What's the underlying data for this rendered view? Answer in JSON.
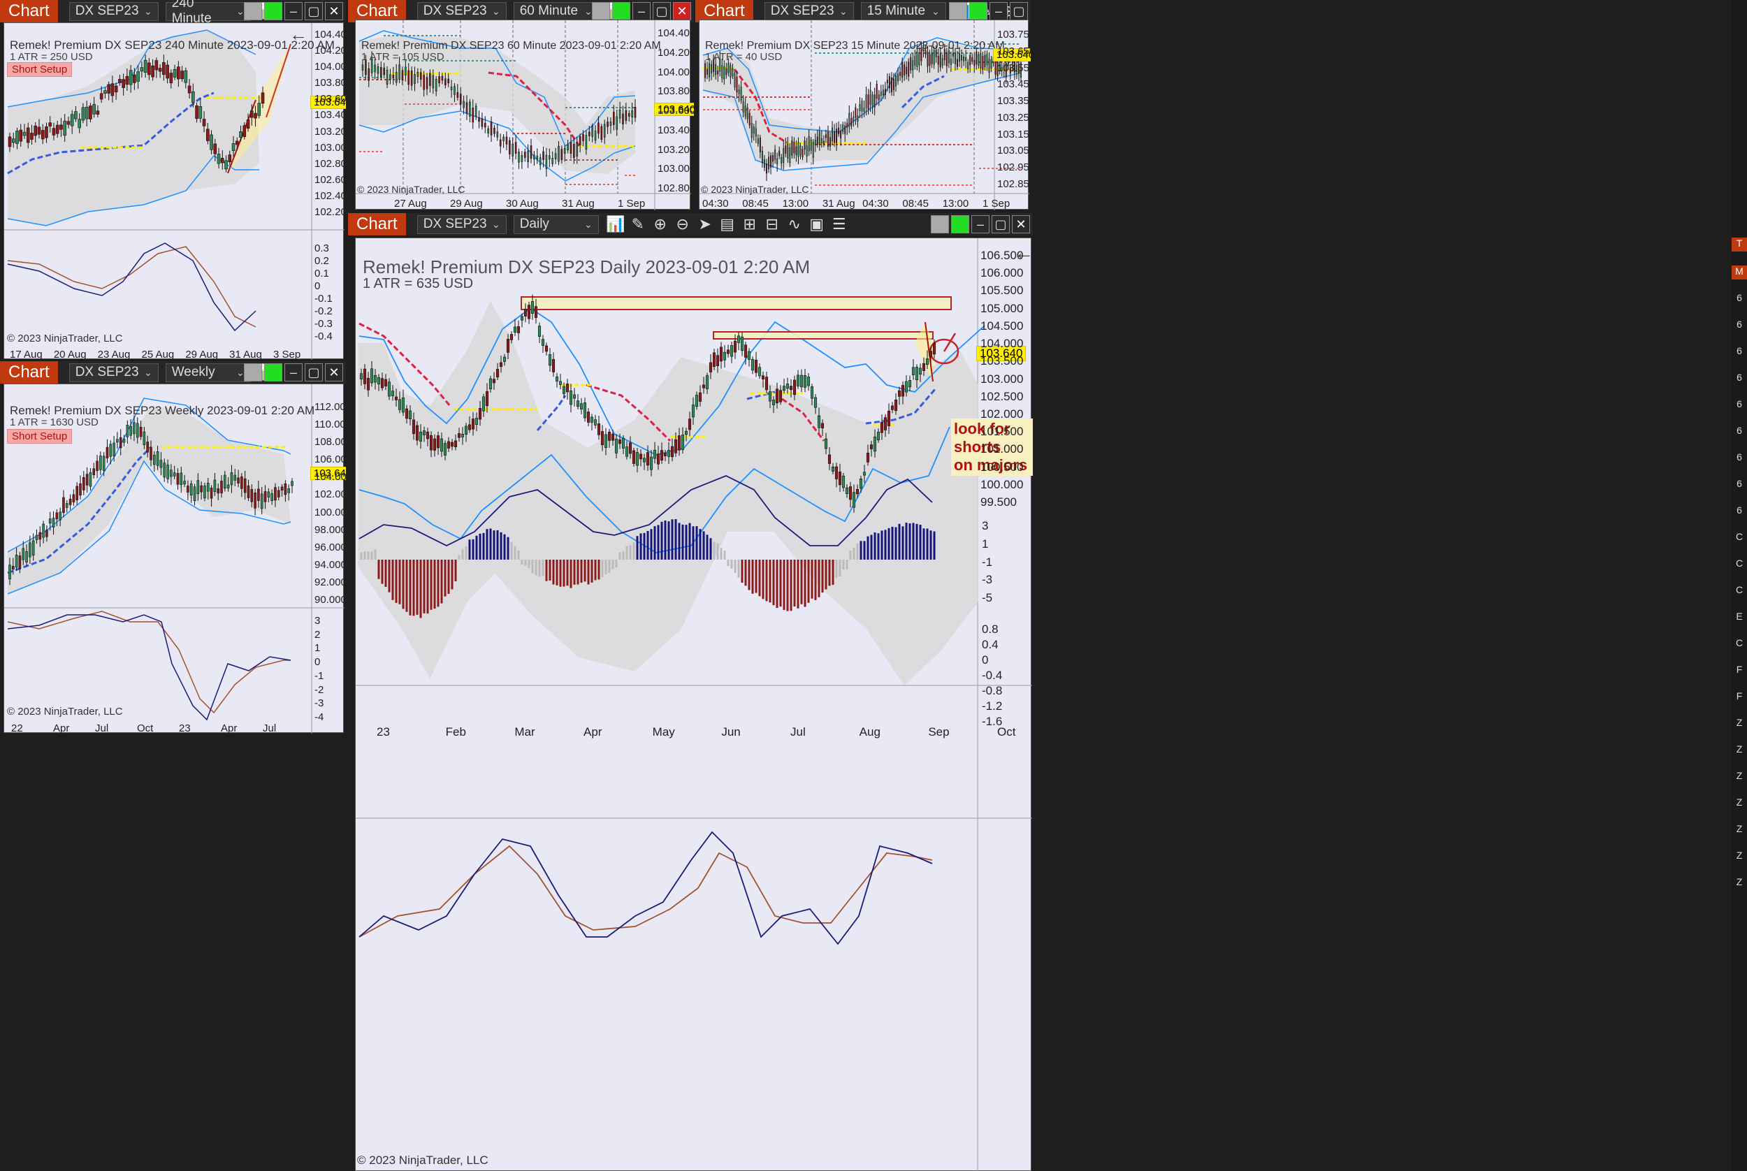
{
  "windows": {
    "w240": {
      "tab": "Chart",
      "instrument": "DX SEP23",
      "interval": "240 Minute",
      "title": "Remek!  Premium  DX SEP23  240 Minute  2023-09-01 2:20 AM",
      "atr": "1 ATR = 250 USD",
      "badge": "Short Setup",
      "copyright": "© 2023 NinjaTrader, LLC",
      "price": "103.640",
      "yticks": [
        "104.400",
        "104.200",
        "104.000",
        "103.800",
        "103.600",
        "103.400",
        "103.200",
        "103.000",
        "102.800",
        "102.600",
        "102.400",
        "102.200"
      ],
      "osc": [
        "0.3",
        "0.2",
        "0.1",
        "0",
        "-0.1",
        "-0.2",
        "-0.3",
        "-0.4"
      ],
      "xticks": [
        "17 Aug",
        "20 Aug",
        "23 Aug",
        "25 Aug",
        "29 Aug",
        "31 Aug",
        "3 Sep"
      ]
    },
    "w60": {
      "tab": "Chart",
      "instrument": "DX SEP23",
      "interval": "60 Minute",
      "title": "Remek!  Premium  DX SEP23  60 Minute  2023-09-01 2:20 AM",
      "atr": "1 ATR = 105 USD",
      "copyright": "© 2023 NinjaTrader, LLC",
      "price": "103.640",
      "yticks": [
        "104.400",
        "104.200",
        "104.000",
        "103.800",
        "103.600",
        "103.400",
        "103.200",
        "103.000",
        "102.800"
      ],
      "xticks": [
        "27 Aug",
        "29 Aug",
        "30 Aug",
        "31 Aug",
        "1 Sep"
      ]
    },
    "w15": {
      "tab": "Chart",
      "instrument": "DX SEP23",
      "interval": "15 Minute",
      "title": "Remek!  Premium  DX SEP23  15 Minute  2023-09-01 2:20 AM",
      "atr": "1 ATR = 40 USD",
      "copyright": "© 2023 NinjaTrader, LLC",
      "price": "103.640",
      "yticks": [
        "103.750",
        "103.650",
        "103.550",
        "103.450",
        "103.350",
        "103.250",
        "103.150",
        "103.050",
        "102.950",
        "102.850"
      ],
      "xticks": [
        "04:30",
        "08:45",
        "13:00",
        "31 Aug",
        "04:30",
        "08:45",
        "13:00",
        "1 Sep"
      ]
    },
    "wW": {
      "tab": "Chart",
      "instrument": "DX SEP23",
      "interval": "Weekly",
      "title": "Remek!  Premium  DX SEP23  Weekly  2023-09-01 2:20 AM",
      "atr": "1 ATR = 1630 USD",
      "badge": "Short Setup",
      "copyright": "© 2023 NinjaTrader, LLC",
      "price": "103.640",
      "yticks": [
        "112.000",
        "110.000",
        "108.000",
        "106.000",
        "104.000",
        "102.000",
        "100.000",
        "98.000",
        "96.000",
        "94.000",
        "92.000",
        "90.000"
      ],
      "osc": [
        "3",
        "2",
        "1",
        "0",
        "-1",
        "-2",
        "-3",
        "-4"
      ],
      "xticks": [
        "22",
        "Apr",
        "Jul",
        "Oct",
        "23",
        "Apr",
        "Jul"
      ]
    },
    "wD": {
      "tab": "Chart",
      "instrument": "DX SEP23",
      "interval": "Daily",
      "title": "Remek!  Premium  DX SEP23  Daily  2023-09-01 2:20 AM",
      "atr": "1 ATR = 635 USD",
      "copyright": "© 2023 NinjaTrader, LLC",
      "price": "103.640",
      "note": "look for shorts\non majors",
      "yticks": [
        "106.500",
        "106.000",
        "105.500",
        "105.000",
        "104.500",
        "104.000",
        "103.500",
        "103.000",
        "102.500",
        "102.000",
        "101.500",
        "101.000",
        "100.500",
        "100.000",
        "99.500"
      ],
      "hist": [
        "3",
        "1",
        "-1",
        "-3",
        "-5"
      ],
      "osc": [
        "0.8",
        "0.4",
        "0",
        "-0.4",
        "-0.8",
        "-1.2",
        "-1.6"
      ],
      "xticks": [
        "23",
        "Feb",
        "Mar",
        "Apr",
        "May",
        "Jun",
        "Jul",
        "Aug",
        "Sep",
        "Oct"
      ]
    }
  },
  "sidebar": [
    "T",
    "M",
    "6",
    "6",
    "6",
    "6",
    "6",
    "6",
    "6",
    "6",
    "6",
    "C",
    "C",
    "C",
    "E",
    "C",
    "F",
    "F",
    "Z",
    "Z",
    "Z",
    "Z",
    "Z",
    "Z",
    "Z"
  ],
  "colors": {
    "tab": "#c0390f",
    "band": "#1e90ff",
    "up": "#2e8b57",
    "down": "#8b1a1a",
    "trail_up": "#3a5bd9",
    "trail_down": "#dd2244",
    "level": "#ffee00",
    "macd": "#1a1a7a",
    "signal": "#a0522d"
  }
}
